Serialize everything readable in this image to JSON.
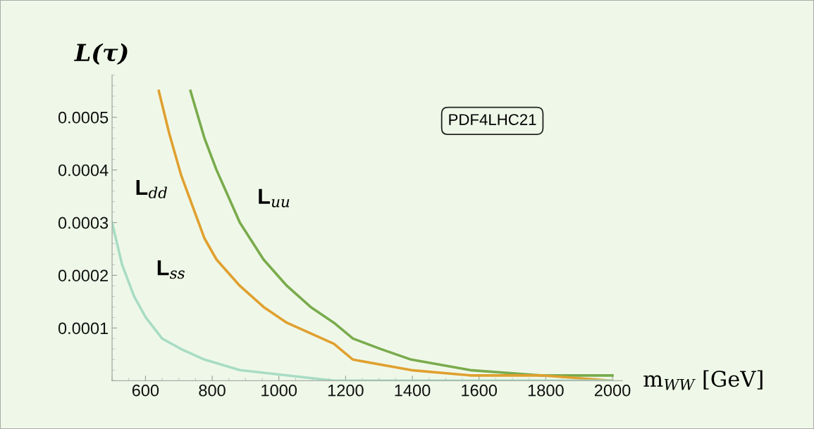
{
  "chart_data": {
    "type": "line",
    "ylabel": "L(τ)",
    "xlabel": "m$_{WW}$ [GeV]",
    "annotations": [
      "PDF4LHC21"
    ],
    "xlim": [
      500,
      2030
    ],
    "xticks": [
      600,
      800,
      1000,
      1200,
      1400,
      1600,
      1800,
      2000
    ],
    "ylim": [
      0,
      0.00058
    ],
    "yticks": [
      0.0001,
      0.0002,
      0.0003,
      0.0004,
      0.0005
    ],
    "grid": false,
    "legend": false,
    "marker": "none",
    "line_style": "solid",
    "series": [
      {
        "name": "L$_{uu}$",
        "color": "#7aab4d",
        "x": [
          735,
          777,
          813,
          883,
          954,
          1024,
          1095,
          1165,
          1222,
          1306,
          1397,
          1574,
          1786,
          2000
        ],
        "values": [
          0.00055,
          0.00046,
          0.0004,
          0.0003,
          0.00023,
          0.00018,
          0.00014,
          0.00011,
          8e-05,
          6e-05,
          4e-05,
          2e-05,
          1e-05,
          1e-05
        ]
      },
      {
        "name": "L$_{dd}$",
        "color": "#e0a030",
        "x": [
          640,
          671,
          707,
          742,
          777,
          813,
          883,
          954,
          1024,
          1165,
          1222,
          1397,
          1574,
          1786,
          2000
        ],
        "values": [
          0.00055,
          0.00047,
          0.00039,
          0.00033,
          0.00027,
          0.00023,
          0.00018,
          0.00014,
          0.00011,
          7e-05,
          4e-05,
          2e-05,
          1e-05,
          1e-05,
          0.0
        ]
      },
      {
        "name": "L$_{ss}$",
        "color": "#a8dcc4",
        "x": [
          500,
          530,
          566,
          601,
          650,
          707,
          777,
          883,
          1024,
          1165,
          1400,
          1700,
          2000
        ],
        "values": [
          0.0003,
          0.00022,
          0.00016,
          0.00012,
          8e-05,
          6e-05,
          4e-05,
          2e-05,
          1e-05,
          0.0,
          0.0,
          0.0,
          0.0
        ]
      }
    ]
  }
}
